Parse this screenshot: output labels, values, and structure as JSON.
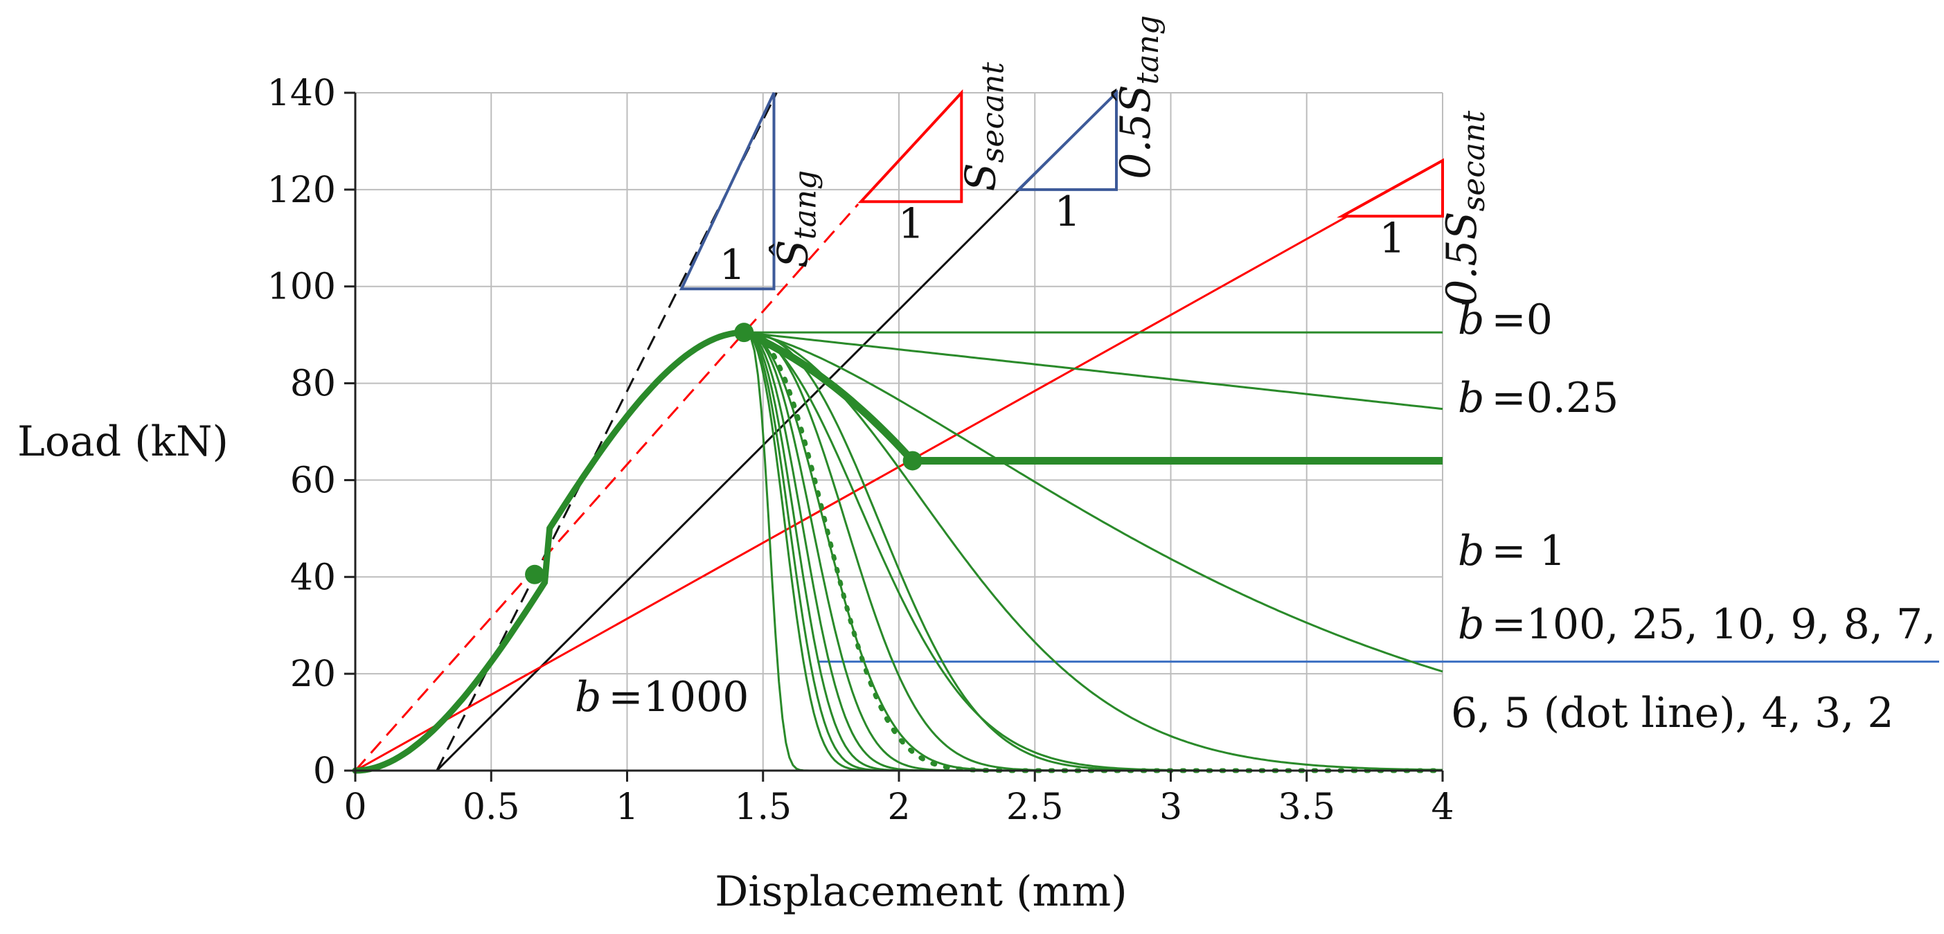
{
  "chart_data": {
    "type": "line",
    "title": "",
    "xlabel": "Displacement (mm)",
    "ylabel": "Load (kN)",
    "xlim": [
      0,
      4
    ],
    "ylim": [
      0,
      140
    ],
    "xticks": [
      "0",
      "0.5",
      "1",
      "1.5",
      "2",
      "2.5",
      "3",
      "3.5",
      "4"
    ],
    "yticks": [
      "0",
      "20",
      "40",
      "60",
      "80",
      "100",
      "120",
      "140"
    ],
    "grid": true,
    "colors": {
      "curve": "#2a8a2a",
      "red": "#ff0000",
      "blue": "#3d5a99",
      "black": "#111111",
      "hline": "#3b6fc2"
    },
    "peak": {
      "x": 1.43,
      "y": 90.5
    },
    "inflection_point": {
      "x": 0.66,
      "y": 40.5
    },
    "residual_point": {
      "x": 2.05,
      "y": 64
    },
    "residual_load": 64,
    "horizontal_marker": {
      "x_start": 1.7,
      "y": 22.5
    },
    "b_values": [
      0,
      0.25,
      1,
      2,
      3,
      4,
      5,
      6,
      7,
      8,
      9,
      10,
      25,
      100,
      1000
    ],
    "dotted_b": 5,
    "reference_lines": [
      {
        "name": "tangent",
        "style": "dashed",
        "color": "black",
        "points": [
          [
            0.3,
            0
          ],
          [
            1.55,
            140
          ]
        ]
      },
      {
        "name": "tangent-half",
        "style": "solid",
        "color": "black",
        "points": [
          [
            0.3,
            0
          ],
          [
            2.8,
            140
          ]
        ]
      },
      {
        "name": "secant",
        "style": "dashed",
        "color": "red",
        "points": [
          [
            0,
            0
          ],
          [
            1.85,
            117
          ]
        ]
      },
      {
        "name": "secant-half",
        "style": "solid",
        "color": "red",
        "points": [
          [
            0,
            0
          ],
          [
            3.65,
            114.5
          ]
        ]
      }
    ],
    "slope_triangles": [
      {
        "name": "tangent",
        "color": "blue",
        "base": [
          1.2,
          99.5
        ],
        "corner": [
          1.54,
          99.5
        ],
        "top": [
          1.54,
          140
        ],
        "one_label": "1",
        "label_main": "Ŝ",
        "label_sub": "tang"
      },
      {
        "name": "secant",
        "color": "red",
        "base": [
          1.86,
          117.5
        ],
        "corner": [
          2.23,
          117.5
        ],
        "top": [
          2.23,
          140
        ],
        "one_label": "1",
        "label_main": "S",
        "label_sub": "secant"
      },
      {
        "name": "tangent-half",
        "color": "blue",
        "base": [
          2.44,
          120
        ],
        "corner": [
          2.8,
          120
        ],
        "top": [
          2.8,
          140
        ],
        "one_label": "1",
        "label_main": "0.5Ŝ",
        "label_sub": "tang"
      },
      {
        "name": "secant-half",
        "color": "red",
        "base": [
          3.63,
          114.5
        ],
        "corner": [
          4.0,
          114.5
        ],
        "top": [
          4.0,
          126
        ],
        "one_label": "1",
        "label_main": "0.5S",
        "label_sub": "secant"
      }
    ],
    "annotations": {
      "b_zero": "=0",
      "b_quarter": "=0.25",
      "b_one": "= 1",
      "b_list_line1": "=100, 25, 10, 9, 8, 7,",
      "b_list_line2": "6, 5 (dot line), 4, 3, 2",
      "b_thousand": "=1000",
      "b_symbol": "b"
    }
  }
}
